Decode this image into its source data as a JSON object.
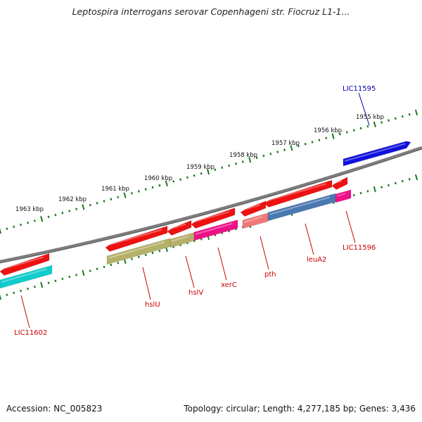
{
  "title": "Leptospira interrogans serovar Copenhageni str. Fiocruz L1-1...",
  "footer": {
    "accession": "Accession: NC_005823",
    "summary": "Topology: circular; Length: 4,277,185 bp; Genes: 3,436"
  },
  "colors": {
    "backbone": "#7d7d7d",
    "tick": "#1a7a1a",
    "gene_red": "#ee1111",
    "gene_cyan": "#11cccc",
    "gene_olive": "#b5b06a",
    "gene_magenta": "#ee1188",
    "gene_steel": "#4a78b0",
    "gene_pink": "#f07878",
    "gene_blue": "#1111dd",
    "label_red": "#cc0000",
    "label_blue": "#0000aa"
  },
  "kbp_labels": [
    "1955 kbp",
    "1956 kbp",
    "1957 kbp",
    "1958 kbp",
    "1959 kbp",
    "1960 kbp",
    "1961 kbp",
    "1962 kbp",
    "1963 kbp"
  ],
  "gene_labels": [
    "LIC11595",
    "LIC11596",
    "leuA2",
    "pth",
    "xerC",
    "hslV",
    "hslU",
    "LIC11602"
  ]
}
